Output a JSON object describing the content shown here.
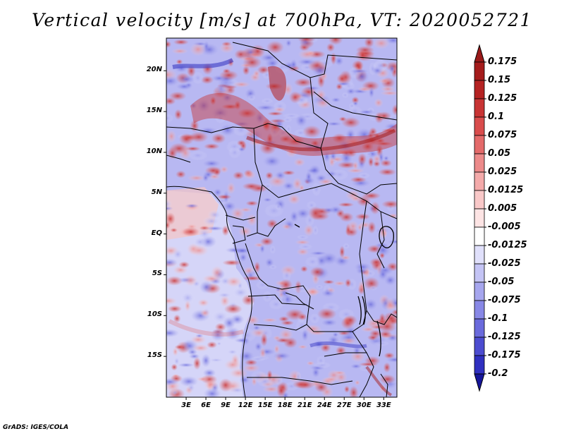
{
  "title": "Vertical velocity [m/s] at 700hPa, VT: 2020052721",
  "credit": "GrADS: IGES/COLA",
  "map": {
    "region": "Central Africa",
    "lat_range": [
      -20,
      24
    ],
    "lon_range": [
      0,
      35
    ],
    "lat_ticks": [
      {
        "value": 20,
        "label": "20N"
      },
      {
        "value": 15,
        "label": "15N"
      },
      {
        "value": 10,
        "label": "10N"
      },
      {
        "value": 5,
        "label": "5N"
      },
      {
        "value": 0,
        "label": "EQ"
      },
      {
        "value": -5,
        "label": "5S"
      },
      {
        "value": -10,
        "label": "10S"
      },
      {
        "value": -15,
        "label": "15S"
      }
    ],
    "lon_ticks": [
      {
        "value": 3,
        "label": "3E"
      },
      {
        "value": 6,
        "label": "6E"
      },
      {
        "value": 9,
        "label": "9E"
      },
      {
        "value": 12,
        "label": "12E"
      },
      {
        "value": 15,
        "label": "15E"
      },
      {
        "value": 18,
        "label": "18E"
      },
      {
        "value": 21,
        "label": "21E"
      },
      {
        "value": 24,
        "label": "24E"
      },
      {
        "value": 27,
        "label": "27E"
      },
      {
        "value": 30,
        "label": "30E"
      },
      {
        "value": 33,
        "label": "33E"
      }
    ]
  },
  "colorbar": {
    "levels": [
      {
        "label": "0.175",
        "color": "#a51c1c"
      },
      {
        "label": "0.15",
        "color": "#b52323"
      },
      {
        "label": "0.125",
        "color": "#c83434"
      },
      {
        "label": "0.1",
        "color": "#d94c4c"
      },
      {
        "label": "0.075",
        "color": "#e46a6a"
      },
      {
        "label": "0.05",
        "color": "#ec8a8a"
      },
      {
        "label": "0.025",
        "color": "#f4aaaa"
      },
      {
        "label": "0.0125",
        "color": "#f9c8c8"
      },
      {
        "label": "0.005",
        "color": "#fde4e4"
      },
      {
        "label": "-0.005",
        "color": "#ffffff"
      },
      {
        "label": "-0.0125",
        "color": "#e0e0fb"
      },
      {
        "label": "-0.025",
        "color": "#c4c4f5"
      },
      {
        "label": "-0.05",
        "color": "#a6a6ee"
      },
      {
        "label": "-0.075",
        "color": "#8888e6"
      },
      {
        "label": "-0.1",
        "color": "#6a6adc"
      },
      {
        "label": "-0.125",
        "color": "#4c4cd0"
      },
      {
        "label": "-0.175",
        "color": "#3030c0"
      },
      {
        "label": "-0.2",
        "color": "#1a1aa8"
      }
    ],
    "top_end_color": "#9a1a1a",
    "bottom_end_color": "#15159a"
  }
}
